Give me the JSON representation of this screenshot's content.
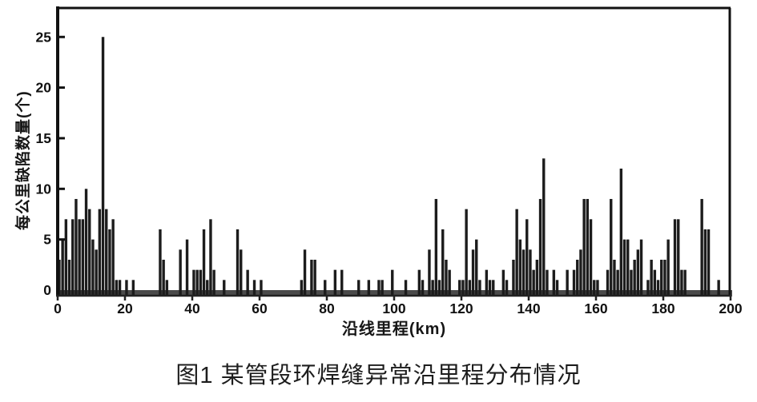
{
  "page": {
    "background": "#ffffff"
  },
  "caption": {
    "text": "图1 某管段环焊缝异常沿里程分布情况"
  },
  "chart_data": {
    "type": "bar",
    "title": "",
    "xlabel": "沿线里程(km)",
    "ylabel": "每公里缺陷数量(个)",
    "xlim": [
      0,
      200
    ],
    "ylim": [
      0,
      27.5
    ],
    "grid": false,
    "legend": null,
    "bin_width_km": 1,
    "x_ticks": [
      0,
      20,
      40,
      60,
      80,
      100,
      120,
      140,
      160,
      180,
      200
    ],
    "y_ticks": [
      0,
      5,
      10,
      15,
      20,
      25
    ],
    "bar_color": "#1c1c1c",
    "baseline_band_color": "#4a4a4a",
    "frame_color": "#111111",
    "values": [
      3,
      5,
      7,
      3,
      7,
      9,
      7,
      7,
      10,
      8,
      5,
      4,
      8,
      25,
      8,
      6,
      7,
      1,
      1,
      0,
      1,
      0,
      1,
      0,
      0,
      0,
      0,
      0,
      0,
      0,
      6,
      3,
      1,
      0,
      0,
      0,
      4,
      0,
      5,
      0,
      2,
      2,
      2,
      6,
      1,
      7,
      2,
      0,
      0,
      1,
      0,
      0,
      0,
      6,
      4,
      0,
      2,
      0,
      1,
      0,
      1,
      0,
      0,
      0,
      0,
      0,
      0,
      0,
      0,
      0,
      0,
      0,
      1,
      4,
      0,
      3,
      3,
      0,
      0,
      1,
      0,
      0,
      2,
      0,
      2,
      0,
      0,
      0,
      0,
      1,
      0,
      0,
      1,
      0,
      0,
      1,
      1,
      0,
      0,
      2,
      0,
      0,
      0,
      1,
      0,
      0,
      0,
      2,
      1,
      0,
      4,
      1,
      9,
      1,
      6,
      3,
      2,
      0,
      0,
      1,
      1,
      8,
      1,
      4,
      5,
      1,
      0,
      2,
      1,
      1,
      0,
      0,
      2,
      1,
      0,
      3,
      8,
      5,
      4,
      7,
      4,
      2,
      3,
      9,
      13,
      2,
      0,
      2,
      1,
      0,
      0,
      2,
      0,
      2,
      3,
      4,
      9,
      9,
      7,
      1,
      1,
      0,
      0,
      2,
      9,
      3,
      2,
      12,
      5,
      5,
      2,
      3,
      4,
      5,
      0,
      1,
      3,
      2,
      1,
      3,
      3,
      5,
      0,
      7,
      7,
      2,
      2,
      0,
      0,
      0,
      0,
      9,
      6,
      6,
      0,
      0,
      1,
      0,
      0,
      0
    ]
  }
}
